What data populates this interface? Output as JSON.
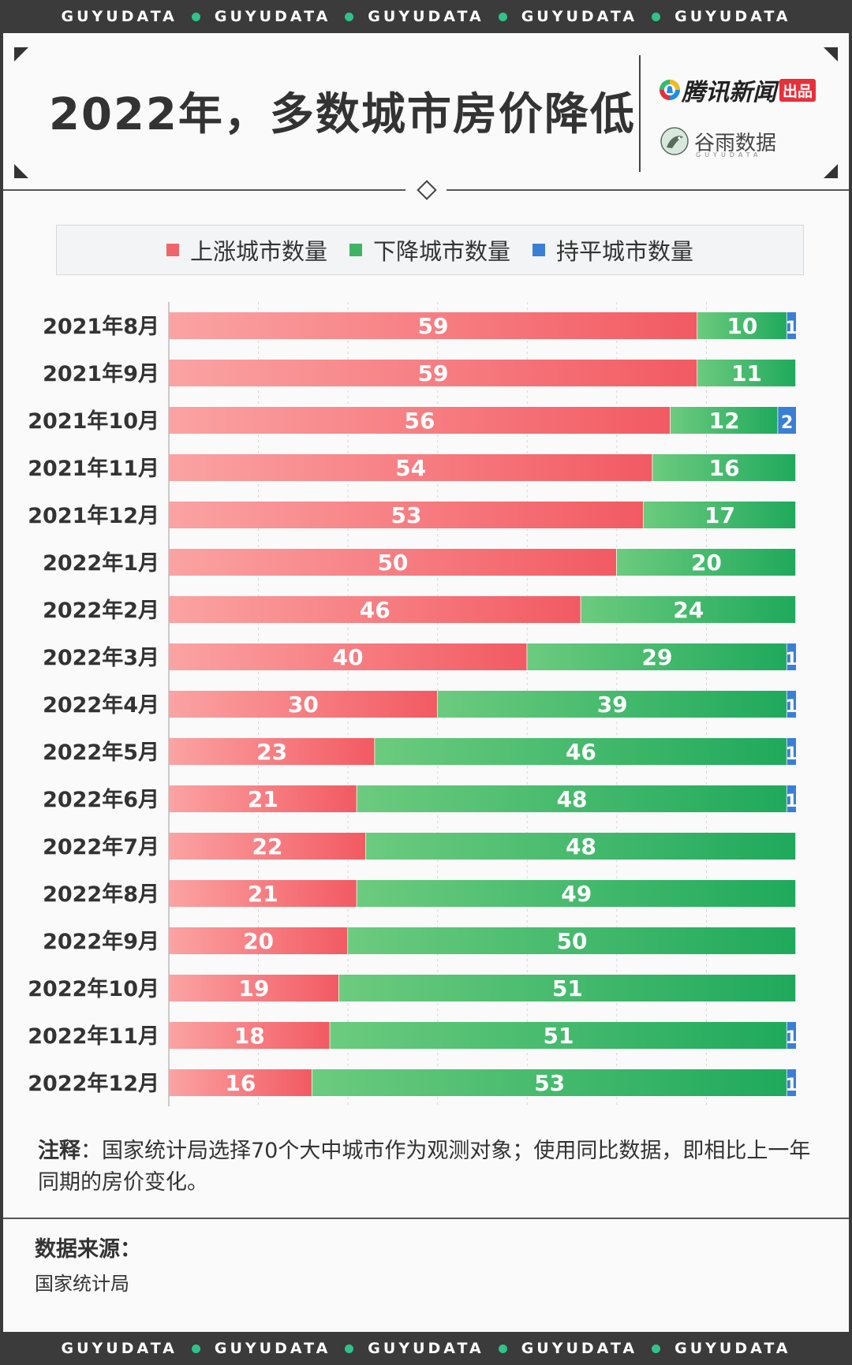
{
  "band": {
    "text": "GUYUDATA"
  },
  "header": {
    "title": "2022年，多数城市房价降低",
    "brand_primary": "腾讯新闻",
    "brand_primary_tag": "出品",
    "brand_secondary": "谷雨数据",
    "brand_secondary_sub": "GUYUDATA"
  },
  "colors": {
    "rise": "#f0656a",
    "fall": "#49b76d",
    "flat": "#3a7fd6"
  },
  "chart_data": {
    "type": "bar",
    "orientation": "horizontal",
    "stacked": true,
    "title": "2022年，多数城市房价降低",
    "categories": [
      "2021年8月",
      "2021年9月",
      "2021年10月",
      "2021年11月",
      "2021年12月",
      "2022年1月",
      "2022年2月",
      "2022年3月",
      "2022年4月",
      "2022年5月",
      "2022年6月",
      "2022年7月",
      "2022年8月",
      "2022年9月",
      "2022年10月",
      "2022年11月",
      "2022年12月"
    ],
    "series": [
      {
        "name": "上涨城市数量",
        "values": [
          59,
          59,
          56,
          54,
          53,
          50,
          46,
          40,
          30,
          23,
          21,
          22,
          21,
          20,
          19,
          18,
          16
        ]
      },
      {
        "name": "下降城市数量",
        "values": [
          10,
          11,
          12,
          16,
          17,
          20,
          24,
          29,
          39,
          46,
          48,
          48,
          49,
          50,
          51,
          51,
          53
        ]
      },
      {
        "name": "持平城市数量",
        "values": [
          1,
          0,
          2,
          0,
          0,
          0,
          0,
          1,
          1,
          1,
          1,
          0,
          0,
          0,
          0,
          1,
          1
        ]
      }
    ],
    "xlim": [
      0,
      70
    ],
    "grid": true,
    "legend": "top"
  },
  "legend": {
    "items": [
      "上涨城市数量",
      "下降城市数量",
      "持平城市数量"
    ]
  },
  "note": {
    "label": "注释",
    "text": "：国家统计局选择70个大中城市作为观测对象；使用同比数据，即相比上一年同期的房价变化。"
  },
  "source": {
    "label": "数据来源：",
    "value": "国家统计局"
  }
}
